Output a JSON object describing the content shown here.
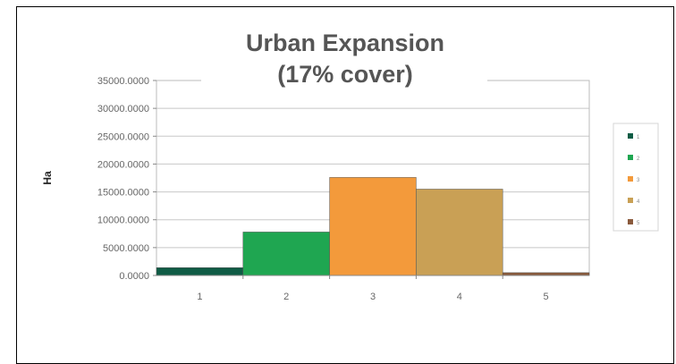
{
  "chart_data": {
    "type": "bar",
    "title_lines": [
      "Urban Expansion",
      "(17% cover)"
    ],
    "ylabel": "Ha",
    "xlabel": "",
    "categories": [
      "1",
      "2",
      "3",
      "4",
      "5"
    ],
    "values": [
      1400,
      7800,
      17600,
      15500,
      500
    ],
    "ylim": [
      0,
      35000
    ],
    "yticks": [
      "0.0000",
      "5000.0000",
      "10000.0000",
      "15000.0000",
      "20000.0000",
      "25000.0000",
      "30000.0000",
      "35000.0000"
    ],
    "ytick_values": [
      0,
      5000,
      10000,
      15000,
      20000,
      25000,
      30000,
      35000
    ],
    "colors": [
      "#0f5c45",
      "#1fa651",
      "#f39a3b",
      "#c9a055",
      "#8a5a3c"
    ],
    "grid": true,
    "legend_position": "right",
    "legend": [
      {
        "label": "1"
      },
      {
        "label": "2"
      },
      {
        "label": "3"
      },
      {
        "label": "4"
      },
      {
        "label": "5"
      }
    ]
  }
}
